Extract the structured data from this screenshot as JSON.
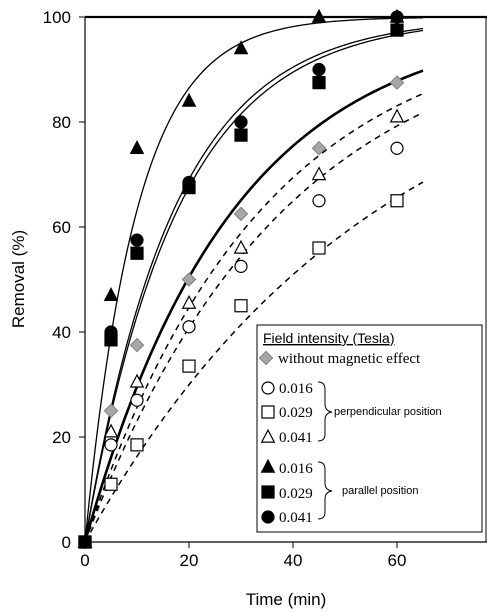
{
  "chart_data": {
    "type": "scatter",
    "xlabel": "Time (min)",
    "ylabel": "Removal (%)",
    "xlim": [
      0,
      65
    ],
    "ylim": [
      0,
      100
    ],
    "x_ticks": [
      "0",
      "20",
      "40",
      "60"
    ],
    "y_ticks": [
      "0",
      "20",
      "40",
      "60",
      "80",
      "100"
    ],
    "legend_title": "Field intensity (Tesla)",
    "legend_placement": "bottom-right",
    "group_labels": {
      "perpendicular": "perpendicular position",
      "parallel": "parallel position"
    },
    "series": [
      {
        "name": "without magnetic effect",
        "marker": "diamond",
        "fill": "#a6a6a6",
        "stroke": "#7f7f7f",
        "line": "solid",
        "line_width": 2.6,
        "x": [
          0,
          5,
          10,
          20,
          30,
          45,
          60
        ],
        "y": [
          0,
          25,
          37.5,
          50,
          62.5,
          75,
          87.5
        ],
        "fit_k": 0.0351,
        "fit_max": 100
      },
      {
        "name": "0.016",
        "group": "perpendicular",
        "marker": "circle",
        "fill": "#ffffff",
        "stroke": "#000000",
        "line": "dashed",
        "line_width": 1.5,
        "x": [
          0,
          5,
          10,
          20,
          30,
          45,
          60
        ],
        "y": [
          0,
          18.5,
          27,
          41,
          52.5,
          65,
          75
        ],
        "fit_k": 0.0262,
        "fit_max": 100
      },
      {
        "name": "0.029",
        "group": "perpendicular",
        "marker": "square",
        "fill": "#ffffff",
        "stroke": "#000000",
        "line": "dashed",
        "line_width": 1.5,
        "x": [
          0,
          5,
          10,
          20,
          30,
          45,
          60
        ],
        "y": [
          0,
          11,
          18.5,
          33.5,
          45,
          56,
          65
        ],
        "fit_k": 0.0178,
        "fit_max": 100
      },
      {
        "name": "0.041",
        "group": "perpendicular",
        "marker": "triangle",
        "fill": "#ffffff",
        "stroke": "#000000",
        "line": "dashed",
        "line_width": 1.5,
        "x": [
          0,
          5,
          10,
          20,
          30,
          45,
          60
        ],
        "y": [
          0,
          21,
          30.5,
          45.5,
          56,
          70,
          81
        ],
        "fit_k": 0.0296,
        "fit_max": 100
      },
      {
        "name": "0.016",
        "group": "parallel",
        "marker": "triangle",
        "fill": "#000000",
        "stroke": "#000000",
        "line": "solid",
        "line_width": 1.3,
        "x": [
          0,
          5,
          10,
          20,
          30,
          45,
          60
        ],
        "y": [
          0,
          47,
          75,
          84,
          94,
          100,
          100
        ],
        "fit_k": 0.1,
        "fit_max": 100
      },
      {
        "name": "0.029",
        "group": "parallel",
        "marker": "square",
        "fill": "#000000",
        "stroke": "#000000",
        "line": "solid",
        "line_width": 1.3,
        "x": [
          0,
          5,
          10,
          20,
          30,
          45,
          60
        ],
        "y": [
          0,
          38.5,
          55,
          67.5,
          77.5,
          87.5,
          97.5
        ],
        "fit_k": 0.0563,
        "fit_max": 100
      },
      {
        "name": "0.041",
        "group": "parallel",
        "marker": "circle",
        "fill": "#000000",
        "stroke": "#000000",
        "line": "solid",
        "line_width": 1.3,
        "x": [
          0,
          5,
          10,
          20,
          30,
          45,
          60
        ],
        "y": [
          0,
          40,
          57.5,
          68.5,
          80,
          90,
          100
        ],
        "fit_k": 0.0587,
        "fit_max": 100
      }
    ]
  }
}
